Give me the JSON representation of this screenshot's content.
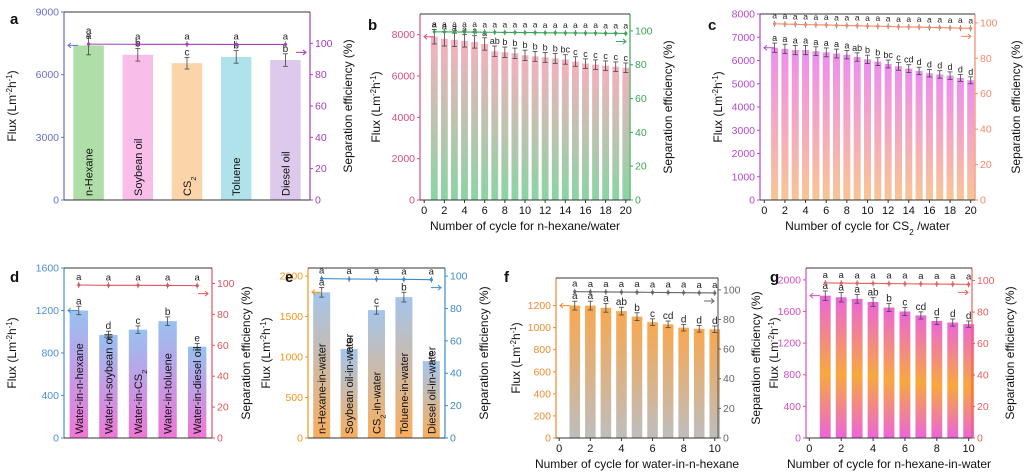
{
  "chart_data": [
    {
      "panel": "a",
      "type": "bar",
      "categories": [
        "n-Hexane",
        "Soybean oil",
        "CS2",
        "Toluene",
        "Diesel oil"
      ],
      "category_labels": [
        [
          "n-Hexane",
          ""
        ],
        [
          "Soybean oil",
          ""
        ],
        [
          "CS",
          "2"
        ],
        [
          "Toluene",
          ""
        ],
        [
          "Diesel oil",
          ""
        ]
      ],
      "values": [
        7400,
        6950,
        6550,
        6850,
        6700
      ],
      "errors": [
        450,
        300,
        280,
        300,
        300
      ],
      "letters": [
        "a",
        "b",
        "c",
        "b",
        "b"
      ],
      "efficiency": [
        99.5,
        99.4,
        99.4,
        99.3,
        99.3
      ],
      "eff_letters": [
        "a",
        "a",
        "a",
        "a",
        "a"
      ],
      "bar_colors": [
        "#a9dba2",
        "#f9b7e8",
        "#fbd0a3",
        "#a8dfe8",
        "#d9c4ea"
      ],
      "ylim": [
        0,
        9000
      ],
      "yticks": [
        0,
        3000,
        6000,
        9000
      ],
      "y2lim": [
        0,
        120
      ],
      "y2ticks": [
        0,
        20,
        40,
        60,
        80,
        100
      ],
      "ylabel": "Flux (Lm-2h-1)",
      "y2label": "Separation efficiency (%)",
      "xlabel": "",
      "bar_style": "solid",
      "label_inside": true,
      "left_axis_color": "#6b6fc9",
      "right_axis_color": "#a340b5"
    },
    {
      "panel": "b",
      "type": "bar",
      "categories": [
        "1",
        "2",
        "3",
        "4",
        "5",
        "6",
        "7",
        "8",
        "9",
        "10",
        "11",
        "12",
        "13",
        "14",
        "15",
        "16",
        "17",
        "18",
        "19",
        "20"
      ],
      "values": [
        7900,
        7800,
        7750,
        7700,
        7650,
        7550,
        7200,
        7150,
        7100,
        7000,
        6950,
        6900,
        6850,
        6800,
        6700,
        6600,
        6550,
        6500,
        6450,
        6400
      ],
      "errors": [
        350,
        350,
        320,
        300,
        300,
        300,
        250,
        250,
        250,
        250,
        240,
        240,
        240,
        230,
        230,
        230,
        230,
        230,
        230,
        230
      ],
      "letters": [
        "a",
        "a",
        "a",
        "a",
        "a",
        "a",
        "ab",
        "b",
        "b",
        "b",
        "b",
        "b",
        "b",
        "bc",
        "c",
        "c",
        "c",
        "c",
        "c",
        "c"
      ],
      "efficiency": [
        99.5,
        99.4,
        99.4,
        99.3,
        99.3,
        99.2,
        99.2,
        99.1,
        99.1,
        99.0,
        99.0,
        98.9,
        98.9,
        98.8,
        98.8,
        98.7,
        98.7,
        98.6,
        98.6,
        98.5
      ],
      "eff_letters": [
        "a",
        "a",
        "a",
        "a",
        "a",
        "a",
        "a",
        "a",
        "a",
        "a",
        "a",
        "a",
        "a",
        "a",
        "a",
        "a",
        "a",
        "a",
        "a",
        "a"
      ],
      "gradient": [
        "#7fd19a",
        "#f5a9b8"
      ],
      "ylim": [
        0,
        9000
      ],
      "yticks": [
        0,
        2000,
        4000,
        6000,
        8000
      ],
      "y2lim": [
        0,
        110
      ],
      "y2ticks": [
        0,
        20,
        40,
        60,
        80,
        100
      ],
      "xticks": [
        "0",
        "2",
        "4",
        "6",
        "8",
        "10",
        "12",
        "14",
        "16",
        "18",
        "20"
      ],
      "ylabel": "Flux (Lm-2h-1)",
      "y2label": "Separation efficiency (%)",
      "xlabel": "Number of cycle for n-hexane/water",
      "bar_style": "gradient",
      "left_axis_color": "#d94f7a",
      "right_axis_color": "#3aa657"
    },
    {
      "panel": "c",
      "type": "bar",
      "categories": [
        "1",
        "2",
        "3",
        "4",
        "5",
        "6",
        "7",
        "8",
        "9",
        "10",
        "11",
        "12",
        "13",
        "14",
        "15",
        "16",
        "17",
        "18",
        "19",
        "20"
      ],
      "values": [
        6550,
        6500,
        6450,
        6450,
        6400,
        6350,
        6300,
        6250,
        6150,
        6050,
        5950,
        5850,
        5750,
        5650,
        5550,
        5450,
        5400,
        5350,
        5250,
        5150
      ],
      "errors": [
        200,
        200,
        200,
        200,
        190,
        190,
        190,
        180,
        180,
        180,
        170,
        170,
        170,
        170,
        160,
        160,
        160,
        160,
        150,
        150
      ],
      "letters": [
        "a",
        "a",
        "a",
        "a",
        "a",
        "a",
        "a",
        "a",
        "ab",
        "b",
        "b",
        "bc",
        "c",
        "cd",
        "d",
        "d",
        "d",
        "d",
        "d",
        "d"
      ],
      "efficiency": [
        99.5,
        99.3,
        99.2,
        99.0,
        98.9,
        98.8,
        98.6,
        98.5,
        98.4,
        98.2,
        98.1,
        98.0,
        97.8,
        97.7,
        97.6,
        97.4,
        97.3,
        97.2,
        97.0,
        96.9
      ],
      "eff_letters": [
        "a",
        "a",
        "a",
        "a",
        "a",
        "a",
        "a",
        "a",
        "a",
        "a",
        "a",
        "a",
        "a",
        "a",
        "a",
        "a",
        "a",
        "a",
        "a",
        "a"
      ],
      "gradient": [
        "#f8c08a",
        "#ec84ee"
      ],
      "ylim": [
        0,
        8000
      ],
      "yticks": [
        0,
        1000,
        2000,
        3000,
        4000,
        5000,
        6000,
        7000,
        8000
      ],
      "y2lim": [
        0,
        105
      ],
      "y2ticks": [
        0,
        20,
        40,
        60,
        80,
        100
      ],
      "xticks": [
        "0",
        "2",
        "4",
        "6",
        "8",
        "10",
        "12",
        "14",
        "16",
        "18",
        "20"
      ],
      "ylabel": "Flux (Lm-2h-1)",
      "y2label": "Separation efficiency (%)",
      "xlabel": "Number of cycle for CS2 /water",
      "bar_style": "gradient",
      "left_axis_color": "#b44ad0",
      "right_axis_color": "#f08a6a"
    },
    {
      "panel": "d",
      "type": "bar",
      "categories": [
        "Water-in-n-hexane",
        "Water-in-soybean oil",
        "Water-in-CS2",
        "Water-in-toluene",
        "Water-in-diesel oil"
      ],
      "category_labels": [
        [
          "Water-in-n-hexane",
          ""
        ],
        [
          "Water-in-soybean oil",
          ""
        ],
        [
          "Water-in-CS",
          "2"
        ],
        [
          "Water-in-toluene",
          ""
        ],
        [
          "Water-in-diesel oil",
          ""
        ]
      ],
      "values": [
        1200,
        970,
        1020,
        1100,
        860
      ],
      "errors": [
        40,
        35,
        35,
        40,
        30
      ],
      "letters": [
        "a",
        "d",
        "c",
        "b",
        "e"
      ],
      "efficiency": [
        99.0,
        98.8,
        98.8,
        98.7,
        98.6
      ],
      "eff_letters": [
        "a",
        "a",
        "a",
        "a",
        "a"
      ],
      "gradient": [
        "#ee6ad3",
        "#8fbcf0"
      ],
      "ylim": [
        0,
        1600
      ],
      "yticks": [
        0,
        400,
        800,
        1200,
        1600
      ],
      "y2lim": [
        0,
        110
      ],
      "y2ticks": [
        0,
        20,
        40,
        60,
        80,
        100
      ],
      "ylabel": "Flux (Lm-2h-1)",
      "y2label": "Separation efficiency (%)",
      "xlabel": "",
      "bar_style": "gradient",
      "label_inside": true,
      "left_axis_color": "#4a8fd6",
      "right_axis_color": "#e05560"
    },
    {
      "panel": "e",
      "type": "bar",
      "categories": [
        "n-Hexane-in-water",
        "Soybean oil-in-water",
        "CS2-in-water",
        "Toluene-in-water",
        "Diesel oil-in-water"
      ],
      "category_labels": [
        [
          "n-Hexane-in-water",
          ""
        ],
        [
          "Soybean oil-in-water",
          ""
        ],
        [
          "CS",
          "2",
          "-in-water"
        ],
        [
          "Toluene-in-water",
          ""
        ],
        [
          "Diesel oil-in-water",
          ""
        ]
      ],
      "values": [
        1800,
        1100,
        1580,
        1740,
        950
      ],
      "errors": [
        60,
        40,
        50,
        60,
        35
      ],
      "letters": [
        "a",
        "d",
        "c",
        "b",
        "e"
      ],
      "efficiency": [
        98.5,
        98.2,
        98.1,
        98.0,
        97.8
      ],
      "eff_letters": [
        "a",
        "a",
        "a",
        "a",
        "a"
      ],
      "gradient": [
        "#f8a750",
        "#9cc0ea"
      ],
      "ylim": [
        0,
        2100
      ],
      "yticks": [
        0,
        500,
        1000,
        1500,
        2000
      ],
      "y2lim": [
        0,
        105
      ],
      "y2ticks": [
        0,
        20,
        40,
        60,
        80,
        100
      ],
      "ylabel": "Flux (Lm-2h-1)",
      "y2label": "Separation efficiency (%)",
      "xlabel": "",
      "bar_style": "gradient",
      "label_inside": true,
      "left_axis_color": "#f0961e",
      "right_axis_color": "#3d8ac9"
    },
    {
      "panel": "f",
      "type": "bar",
      "categories": [
        "1",
        "2",
        "3",
        "4",
        "5",
        "6",
        "7",
        "8",
        "9",
        "10"
      ],
      "values": [
        1200,
        1200,
        1180,
        1150,
        1100,
        1050,
        1030,
        1000,
        990,
        985
      ],
      "errors": [
        40,
        40,
        40,
        35,
        35,
        30,
        30,
        30,
        30,
        30
      ],
      "letters": [
        "a",
        "a",
        "a",
        "ab",
        "b",
        "c",
        "cd",
        "d",
        "d",
        "d"
      ],
      "efficiency": [
        98.8,
        98.7,
        98.6,
        98.5,
        98.4,
        98.3,
        98.2,
        98.1,
        98.0,
        97.9
      ],
      "eff_letters": [
        "a",
        "a",
        "a",
        "a",
        "a",
        "a",
        "a",
        "a",
        "a",
        "a"
      ],
      "gradient": [
        "#b8b8b8",
        "#f8a040"
      ],
      "ylim": [
        0,
        1450
      ],
      "yticks": [
        0,
        200,
        400,
        600,
        800,
        1000,
        1200
      ],
      "y2lim": [
        0,
        108
      ],
      "y2ticks": [
        0,
        20,
        40,
        60,
        80,
        100
      ],
      "xticks": [
        "0",
        "2",
        "4",
        "6",
        "8",
        "10"
      ],
      "ylabel": "Flux (Lm-2h-1)",
      "y2label": "Separation efficiency (%)",
      "xlabel": "Number of cycle for water-in-n-hexane",
      "bar_style": "gradient",
      "left_axis_color": "#f08a30",
      "right_axis_color": "#666666"
    },
    {
      "panel": "g",
      "type": "bar",
      "categories": [
        "1",
        "2",
        "3",
        "4",
        "5",
        "6",
        "7",
        "8",
        "9",
        "10"
      ],
      "values": [
        1800,
        1780,
        1760,
        1720,
        1650,
        1600,
        1550,
        1480,
        1460,
        1440
      ],
      "errors": [
        60,
        60,
        55,
        55,
        50,
        50,
        45,
        45,
        45,
        40
      ],
      "letters": [
        "a",
        "a",
        "a",
        "ab",
        "b",
        "c",
        "cd",
        "d",
        "d",
        "d"
      ],
      "efficiency": [
        98.5,
        98.4,
        98.3,
        98.2,
        98.1,
        98.0,
        97.9,
        97.8,
        97.7,
        97.6
      ],
      "eff_letters": [
        "a",
        "a",
        "a",
        "a",
        "a",
        "a",
        "a",
        "a",
        "a",
        "a"
      ],
      "gradient": [
        "#f7a12c",
        "#ea58d6"
      ],
      "ylim": [
        0,
        2150
      ],
      "yticks": [
        0,
        400,
        800,
        1200,
        1600,
        2000
      ],
      "y2lim": [
        0,
        108
      ],
      "y2ticks": [
        0,
        20,
        40,
        60,
        80,
        100
      ],
      "xticks": [
        "0",
        "2",
        "4",
        "6",
        "8",
        "10"
      ],
      "ylabel": "Flux (Lm-2h-1)",
      "y2label": "Separation efficiency (%)",
      "xlabel": "Number of cycle for n-hexane-in-water",
      "bar_style": "band",
      "left_axis_color": "#d64fc0",
      "right_axis_color": "#e86060"
    }
  ]
}
